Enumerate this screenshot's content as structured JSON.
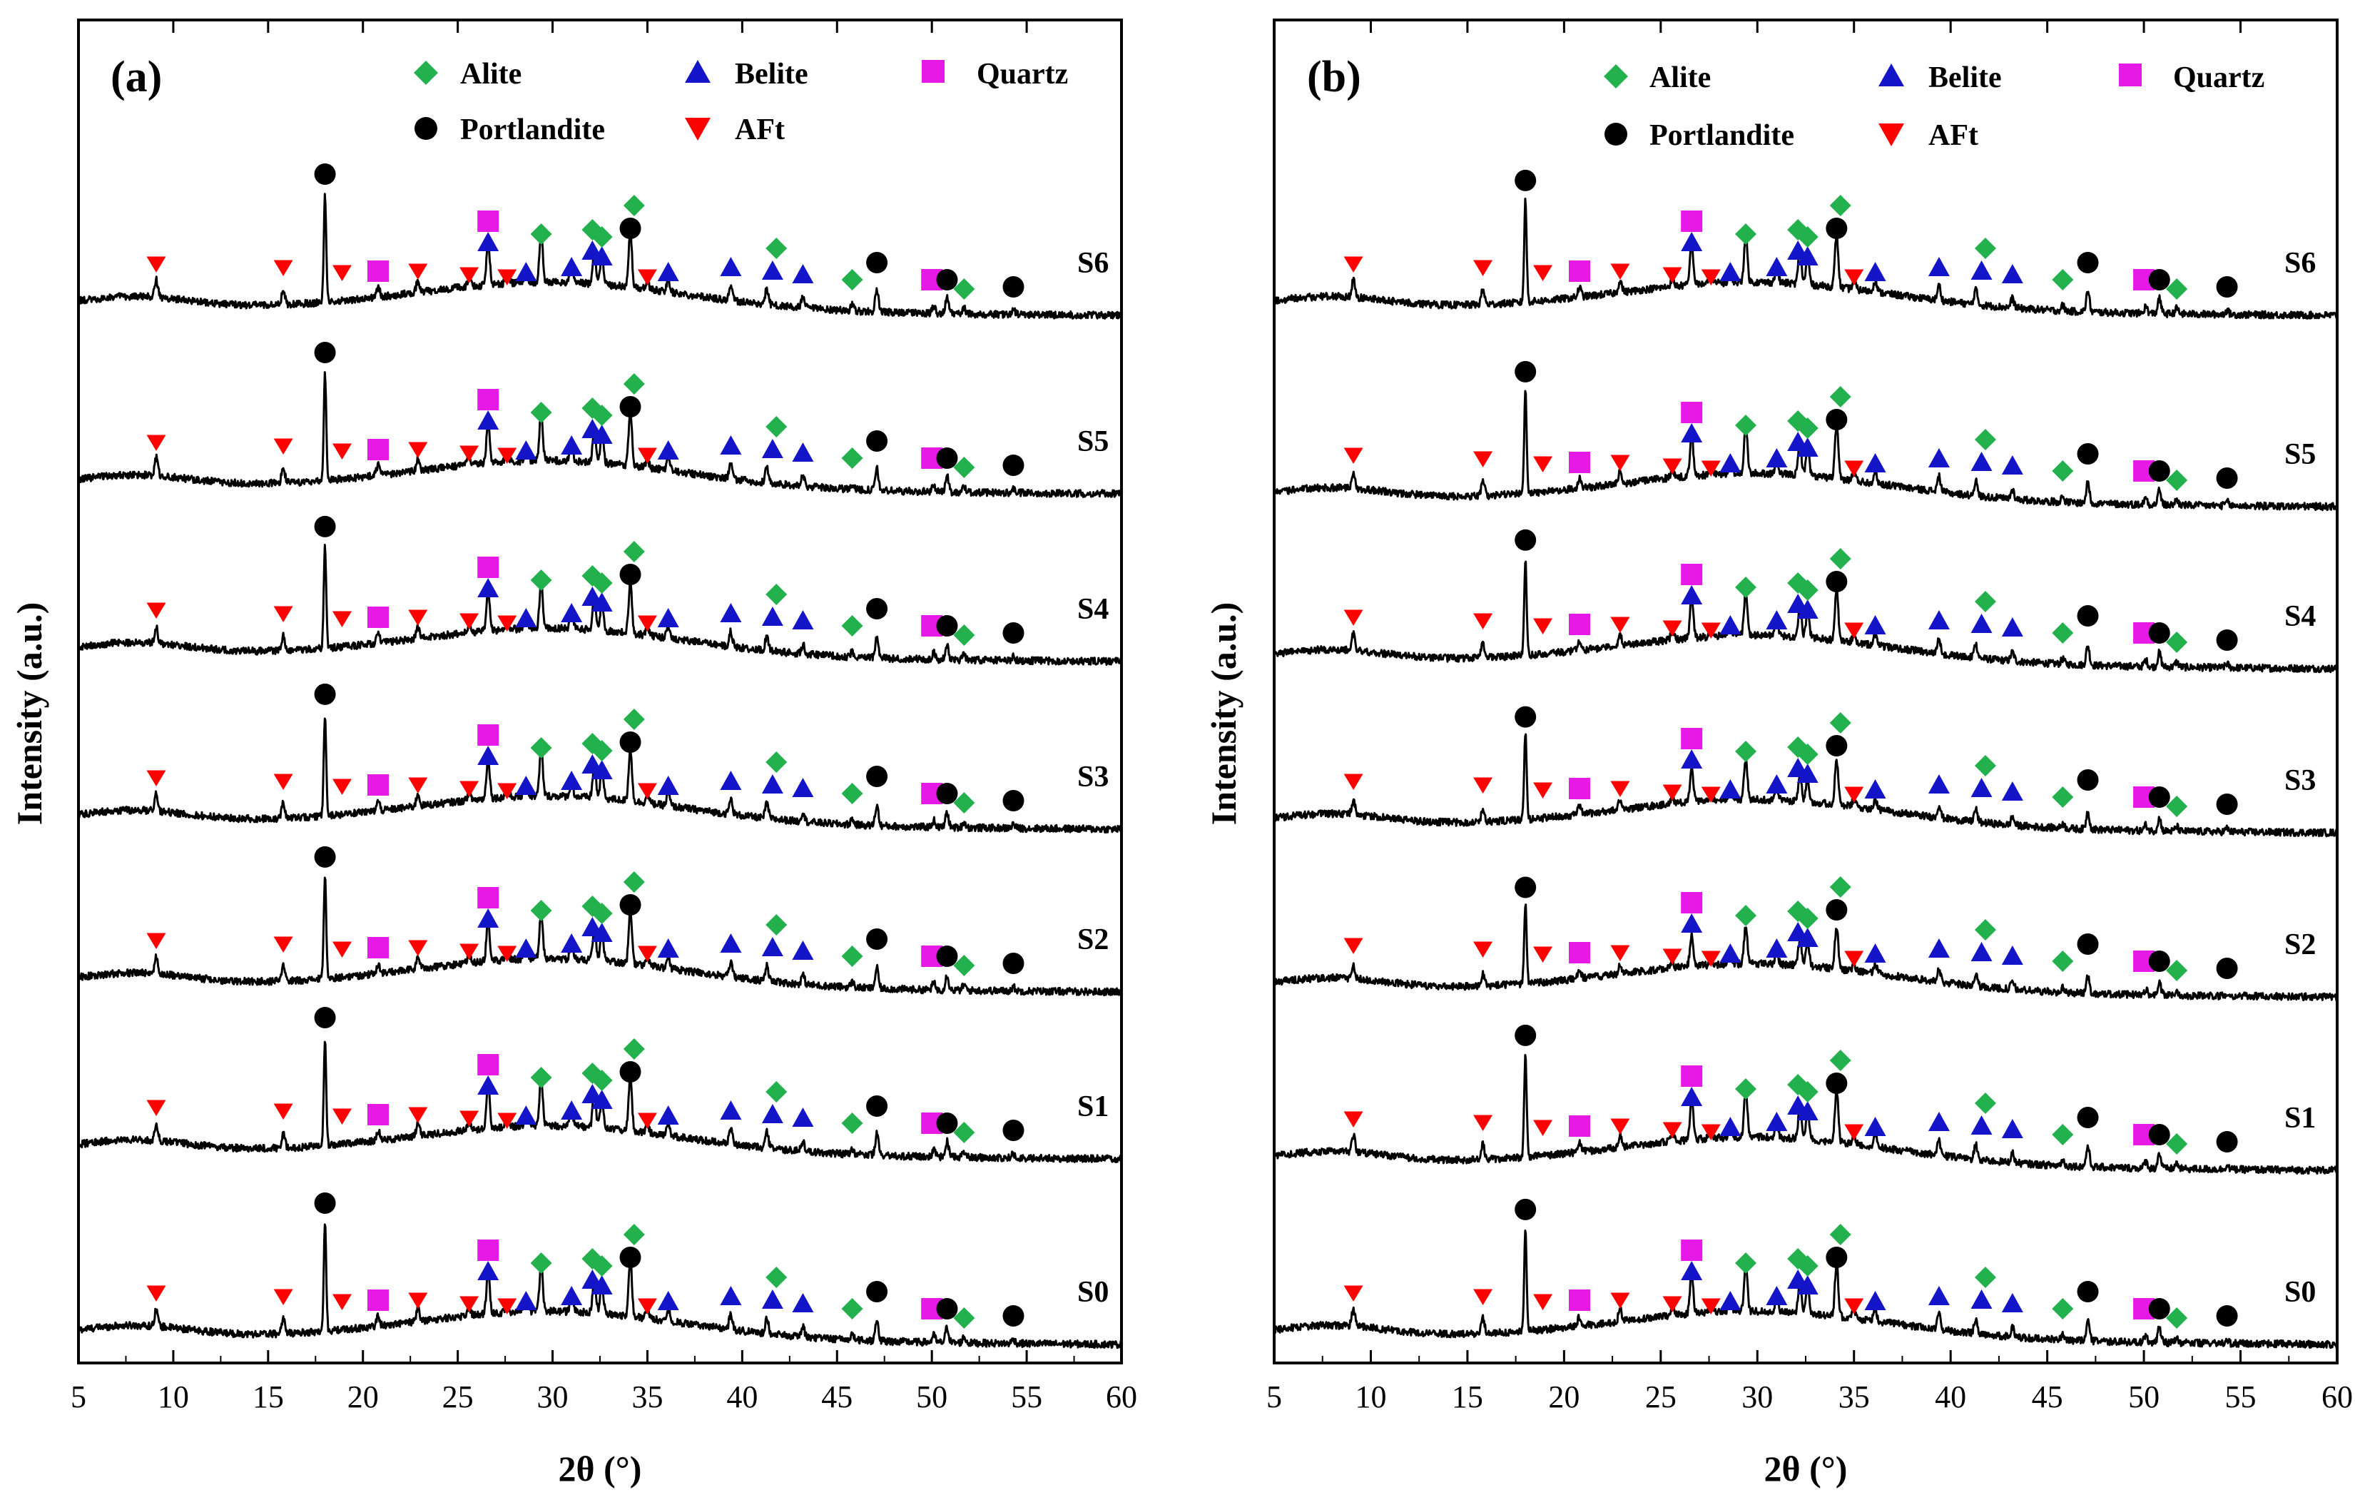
{
  "chart_data": [
    {
      "type": "line",
      "panel_label": "(a)",
      "xlabel": "2θ (°)",
      "ylabel": "Intensity (a.u.)",
      "xlim": [
        5,
        60
      ],
      "xticks": [
        5,
        10,
        15,
        20,
        25,
        30,
        35,
        40,
        45,
        50,
        55,
        60
      ],
      "legend": [
        {
          "name": "Alite",
          "marker": "diamond",
          "color": "#22b14c"
        },
        {
          "name": "Belite",
          "marker": "triangle-up",
          "color": "#1414c8"
        },
        {
          "name": "Quartz",
          "marker": "square",
          "color": "#e619e6"
        },
        {
          "name": "Portlandite",
          "marker": "circle",
          "color": "#000000"
        },
        {
          "name": "AFt",
          "marker": "triangle-down",
          "color": "#ff0000"
        }
      ],
      "series": [
        {
          "name": "S0",
          "peak_scale": 1.0
        },
        {
          "name": "S1",
          "peak_scale": 1.0
        },
        {
          "name": "S2",
          "peak_scale": 0.95
        },
        {
          "name": "S3",
          "peak_scale": 0.95
        },
        {
          "name": "S4",
          "peak_scale": 0.95
        },
        {
          "name": "S5",
          "peak_scale": 1.0
        },
        {
          "name": "S6",
          "peak_scale": 1.0
        }
      ]
    },
    {
      "type": "line",
      "panel_label": "(b)",
      "xlabel": "2θ (°)",
      "ylabel": "Intensity (a.u.)",
      "xlim": [
        5,
        60
      ],
      "xticks": [
        5,
        10,
        15,
        20,
        25,
        30,
        35,
        40,
        45,
        50,
        55,
        60
      ],
      "legend": [
        {
          "name": "Alite",
          "marker": "diamond",
          "color": "#22b14c"
        },
        {
          "name": "Belite",
          "marker": "triangle-up",
          "color": "#1414c8"
        },
        {
          "name": "Quartz",
          "marker": "square",
          "color": "#e619e6"
        },
        {
          "name": "Portlandite",
          "marker": "circle",
          "color": "#000000"
        },
        {
          "name": "AFt",
          "marker": "triangle-down",
          "color": "#ff0000"
        }
      ],
      "series": [
        {
          "name": "S0",
          "peak_scale": 0.95
        },
        {
          "name": "S1",
          "peak_scale": 0.95
        },
        {
          "name": "S2",
          "peak_scale": 0.75
        },
        {
          "name": "S3",
          "peak_scale": 0.8
        },
        {
          "name": "S4",
          "peak_scale": 0.9
        },
        {
          "name": "S5",
          "peak_scale": 0.95
        },
        {
          "name": "S6",
          "peak_scale": 0.95
        }
      ]
    }
  ],
  "phase_peaks": {
    "Alite": [
      29.4,
      32.2,
      32.6,
      34.3,
      41.3,
      51.7
    ],
    "Belite": [
      26.6,
      28.6,
      31.0,
      32.1,
      32.6,
      36.1,
      39.4,
      41.2,
      43.2
    ],
    "Quartz": [
      20.8,
      26.6,
      50.1
    ],
    "Portlandite": [
      18.0,
      34.1,
      47.1,
      50.8,
      54.3
    ],
    "AFt": [
      9.1,
      15.8,
      18.9,
      22.9,
      25.6,
      27.6,
      35.0
    ]
  },
  "peaks": [
    {
      "x": 9.1,
      "h": 25
    },
    {
      "x": 15.8,
      "h": 22
    },
    {
      "x": 18.0,
      "h": 150
    },
    {
      "x": 20.8,
      "h": 14
    },
    {
      "x": 22.9,
      "h": 18
    },
    {
      "x": 25.6,
      "h": 12
    },
    {
      "x": 26.6,
      "h": 62
    },
    {
      "x": 27.6,
      "h": 12
    },
    {
      "x": 28.6,
      "h": 18
    },
    {
      "x": 29.4,
      "h": 70
    },
    {
      "x": 31.0,
      "h": 22
    },
    {
      "x": 32.2,
      "h": 48
    },
    {
      "x": 32.6,
      "h": 42
    },
    {
      "x": 34.1,
      "h": 78
    },
    {
      "x": 35.0,
      "h": 12
    },
    {
      "x": 36.1,
      "h": 18
    },
    {
      "x": 39.4,
      "h": 22
    },
    {
      "x": 41.3,
      "h": 22
    },
    {
      "x": 43.2,
      "h": 14
    },
    {
      "x": 45.8,
      "h": 8
    },
    {
      "x": 47.1,
      "h": 30
    },
    {
      "x": 50.1,
      "h": 10
    },
    {
      "x": 50.8,
      "h": 22
    },
    {
      "x": 51.7,
      "h": 8
    },
    {
      "x": 54.3,
      "h": 6
    }
  ],
  "marker_positions": [
    {
      "phase": "AFt",
      "x": 9.1,
      "dy": 60
    },
    {
      "phase": "AFt",
      "x": 15.8,
      "dy": 55
    },
    {
      "phase": "Portlandite",
      "x": 18.0,
      "dy": 178
    },
    {
      "phase": "AFt",
      "x": 18.9,
      "dy": 48
    },
    {
      "phase": "Quartz",
      "x": 20.8,
      "dy": 50
    },
    {
      "phase": "AFt",
      "x": 22.9,
      "dy": 50
    },
    {
      "phase": "AFt",
      "x": 25.6,
      "dy": 45
    },
    {
      "phase": "Belite",
      "x": 26.6,
      "dy": 90
    },
    {
      "phase": "Quartz",
      "x": 26.6,
      "dy": 120
    },
    {
      "phase": "AFt",
      "x": 27.6,
      "dy": 42
    },
    {
      "phase": "Belite",
      "x": 28.6,
      "dy": 48
    },
    {
      "phase": "Alite",
      "x": 29.4,
      "dy": 102
    },
    {
      "phase": "Belite",
      "x": 31.0,
      "dy": 55
    },
    {
      "phase": "Belite",
      "x": 32.1,
      "dy": 78
    },
    {
      "phase": "Alite",
      "x": 32.1,
      "dy": 108
    },
    {
      "phase": "Belite",
      "x": 32.6,
      "dy": 70
    },
    {
      "phase": "Alite",
      "x": 32.6,
      "dy": 98
    },
    {
      "phase": "Portlandite",
      "x": 34.1,
      "dy": 110
    },
    {
      "phase": "Alite",
      "x": 34.3,
      "dy": 142
    },
    {
      "phase": "AFt",
      "x": 35.0,
      "dy": 42
    },
    {
      "phase": "Belite",
      "x": 36.1,
      "dy": 48
    },
    {
      "phase": "Belite",
      "x": 39.4,
      "dy": 55
    },
    {
      "phase": "Belite",
      "x": 41.6,
      "dy": 50
    },
    {
      "phase": "Alite",
      "x": 41.8,
      "dy": 82
    },
    {
      "phase": "Belite",
      "x": 43.2,
      "dy": 45
    },
    {
      "phase": "Alite",
      "x": 45.8,
      "dy": 38
    },
    {
      "phase": "Portlandite",
      "x": 47.1,
      "dy": 62
    },
    {
      "phase": "Quartz",
      "x": 50.0,
      "dy": 38
    },
    {
      "phase": "Portlandite",
      "x": 50.8,
      "dy": 38
    },
    {
      "phase": "Alite",
      "x": 51.7,
      "dy": 25
    },
    {
      "phase": "Portlandite",
      "x": 54.3,
      "dy": 28
    }
  ]
}
